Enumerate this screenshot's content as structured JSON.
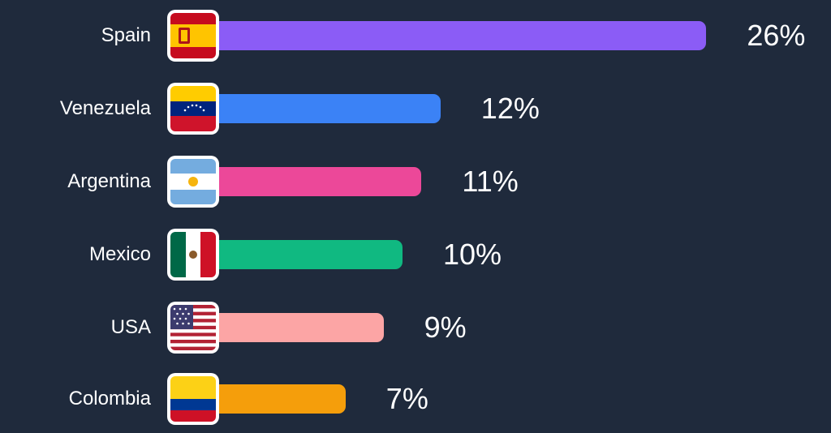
{
  "chart_data": {
    "type": "bar",
    "orientation": "horizontal",
    "categories": [
      "Spain",
      "Venezuela",
      "Argentina",
      "Mexico",
      "USA",
      "Colombia"
    ],
    "values": [
      26,
      12,
      11,
      10,
      9,
      7
    ],
    "value_labels": [
      "26%",
      "12%",
      "11%",
      "10%",
      "9%",
      "7%"
    ],
    "flag_icons": [
      "spain-flag-icon",
      "venezuela-flag-icon",
      "argentina-flag-icon",
      "mexico-flag-icon",
      "usa-flag-icon",
      "colombia-flag-icon"
    ],
    "bar_colors": [
      "#8b5cf6",
      "#3b82f6",
      "#ec4899",
      "#10b981",
      "#fca5a5",
      "#f59e0b"
    ],
    "background": "#1f2a3c",
    "title": "",
    "xlabel": "",
    "ylabel": "",
    "grid": false,
    "legend": false
  }
}
